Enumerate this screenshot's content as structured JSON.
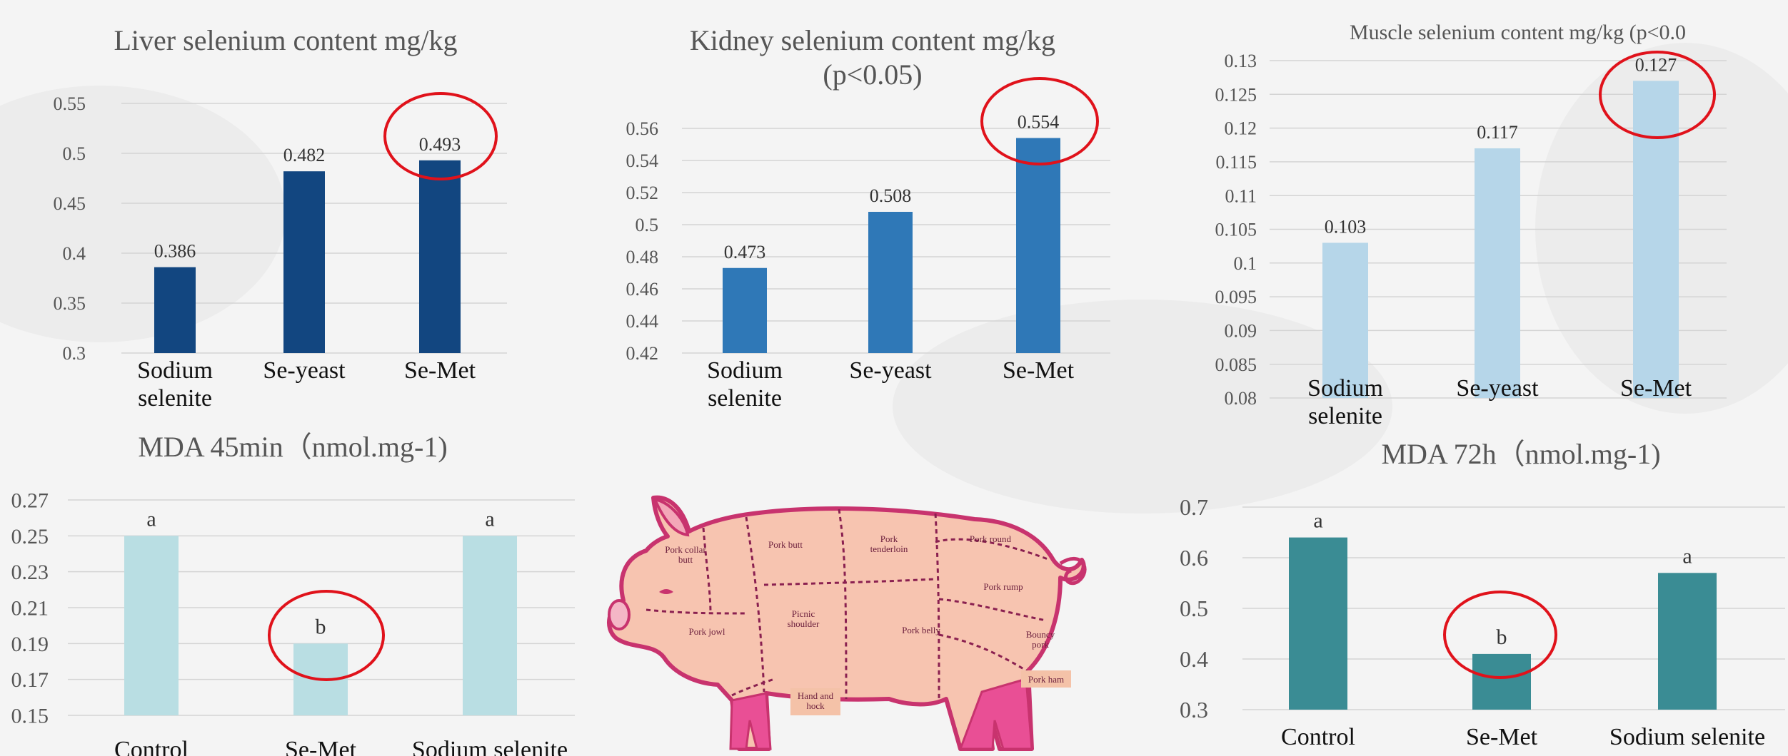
{
  "chart_data": [
    {
      "id": "liver",
      "type": "bar",
      "title": "Liver selenium content mg/kg",
      "categories": [
        "Sodium\nselenite",
        "Se-yeast",
        "Se-Met"
      ],
      "values": [
        0.386,
        0.482,
        0.493
      ],
      "value_labels": [
        "0.386",
        "0.482",
        "0.493"
      ],
      "ylim": [
        0.3,
        0.55
      ],
      "yticks": [
        "0.3",
        "0.35",
        "0.4",
        "0.45",
        "0.5",
        "0.55"
      ],
      "color": "#124680",
      "highlight_index": 2,
      "grid": true
    },
    {
      "id": "kidney",
      "type": "bar",
      "title": "Kidney selenium content mg/kg\n(p<0.05)",
      "categories": [
        "Sodium\nselenite",
        "Se-yeast",
        "Se-Met"
      ],
      "values": [
        0.473,
        0.508,
        0.554
      ],
      "value_labels": [
        "0.473",
        "0.508",
        "0.554"
      ],
      "ylim": [
        0.42,
        0.56
      ],
      "yticks": [
        "0.42",
        "0.44",
        "0.46",
        "0.48",
        "0.5",
        "0.52",
        "0.54",
        "0.56"
      ],
      "color": "#2f78b7",
      "highlight_index": 2,
      "grid": true
    },
    {
      "id": "muscle",
      "type": "bar",
      "title": "Muscle selenium content mg/kg (p<0.0",
      "categories": [
        "Sodium\nselenite",
        "Se-yeast",
        "Se-Met"
      ],
      "values": [
        0.103,
        0.117,
        0.127
      ],
      "value_labels": [
        "0.103",
        "0.117",
        "0.127"
      ],
      "ylim": [
        0.08,
        0.13
      ],
      "yticks": [
        "0.08",
        "0.085",
        "0.09",
        "0.095",
        "0.1",
        "0.105",
        "0.11",
        "0.115",
        "0.12",
        "0.125",
        "0.13"
      ],
      "color": "#b6d6e9",
      "highlight_index": 2,
      "grid": true
    },
    {
      "id": "mda45",
      "type": "bar",
      "title": "MDA 45min（nmol.mg-1)",
      "categories": [
        "Control",
        "Se-Met",
        "Sodium selenite"
      ],
      "values": [
        0.25,
        0.19,
        0.25
      ],
      "value_labels": [
        "a",
        "b",
        "a"
      ],
      "ylim": [
        0.15,
        0.27
      ],
      "yticks": [
        "0.15",
        "0.17",
        "0.19",
        "0.21",
        "0.23",
        "0.25",
        "0.27"
      ],
      "color": "#b9dee3",
      "highlight_index": 1,
      "grid": true
    },
    {
      "id": "mda72",
      "type": "bar",
      "title": "MDA 72h（nmol.mg-1)",
      "categories": [
        "Control",
        "Se-Met",
        "Sodium selenite"
      ],
      "values": [
        0.64,
        0.41,
        0.57
      ],
      "value_labels": [
        "a",
        "b",
        "a"
      ],
      "ylim": [
        0.3,
        0.7
      ],
      "yticks": [
        "0.3",
        "0.4",
        "0.5",
        "0.6",
        "0.7"
      ],
      "color": "#3a8c94",
      "highlight_index": 1,
      "grid": true
    }
  ],
  "pig_diagram": {
    "cut_labels": {
      "collar_butt": "Pork collar\nbutt",
      "butt": "Pork butt",
      "tenderloin": "Pork\ntenderloin",
      "round": "Pork round",
      "rump": "Pork rump",
      "jowl": "Pork jowl",
      "picnic": "Picnic\nshoulder",
      "belly": "Pork belly",
      "bouncy": "Bouncy\npork",
      "ham": "Pork ham",
      "hock": "Hand and\nhock"
    },
    "colors": {
      "body": "#f7c4b0",
      "outline": "#c8336e",
      "legs": "#e94f95",
      "cut_line": "#8a2050",
      "text": "#6b1e3c",
      "label_box": "#f4c2a8"
    }
  }
}
